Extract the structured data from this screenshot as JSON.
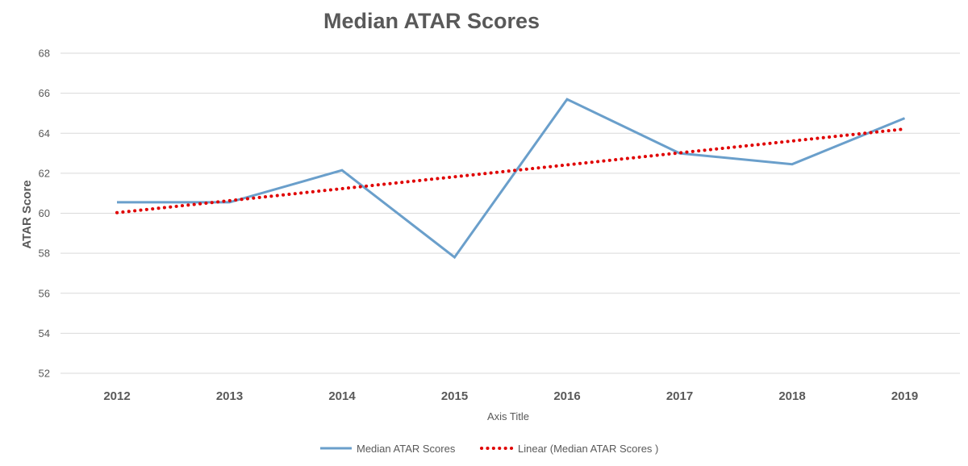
{
  "chart_data": {
    "type": "line",
    "title": "Median ATAR Scores",
    "xlabel": "Axis Title",
    "ylabel": "ATAR Score",
    "categories": [
      "2012",
      "2013",
      "2014",
      "2015",
      "2016",
      "2017",
      "2018",
      "2019"
    ],
    "ylim": [
      52,
      68
    ],
    "yticks": [
      "52",
      "54",
      "56",
      "58",
      "60",
      "62",
      "64",
      "66",
      "68"
    ],
    "grid": true,
    "legend_position": "bottom",
    "series": [
      {
        "name": "Median ATAR Scores",
        "values": [
          60.55,
          60.55,
          62.15,
          57.8,
          65.7,
          63.0,
          62.45,
          64.75
        ],
        "color": "#6a9fcb"
      },
      {
        "name": "Linear (Median ATAR Scores )",
        "values": [
          60.03,
          60.63,
          61.23,
          61.82,
          62.42,
          63.02,
          63.61,
          64.21
        ],
        "color": "#e00000",
        "style": "dotted"
      }
    ]
  }
}
